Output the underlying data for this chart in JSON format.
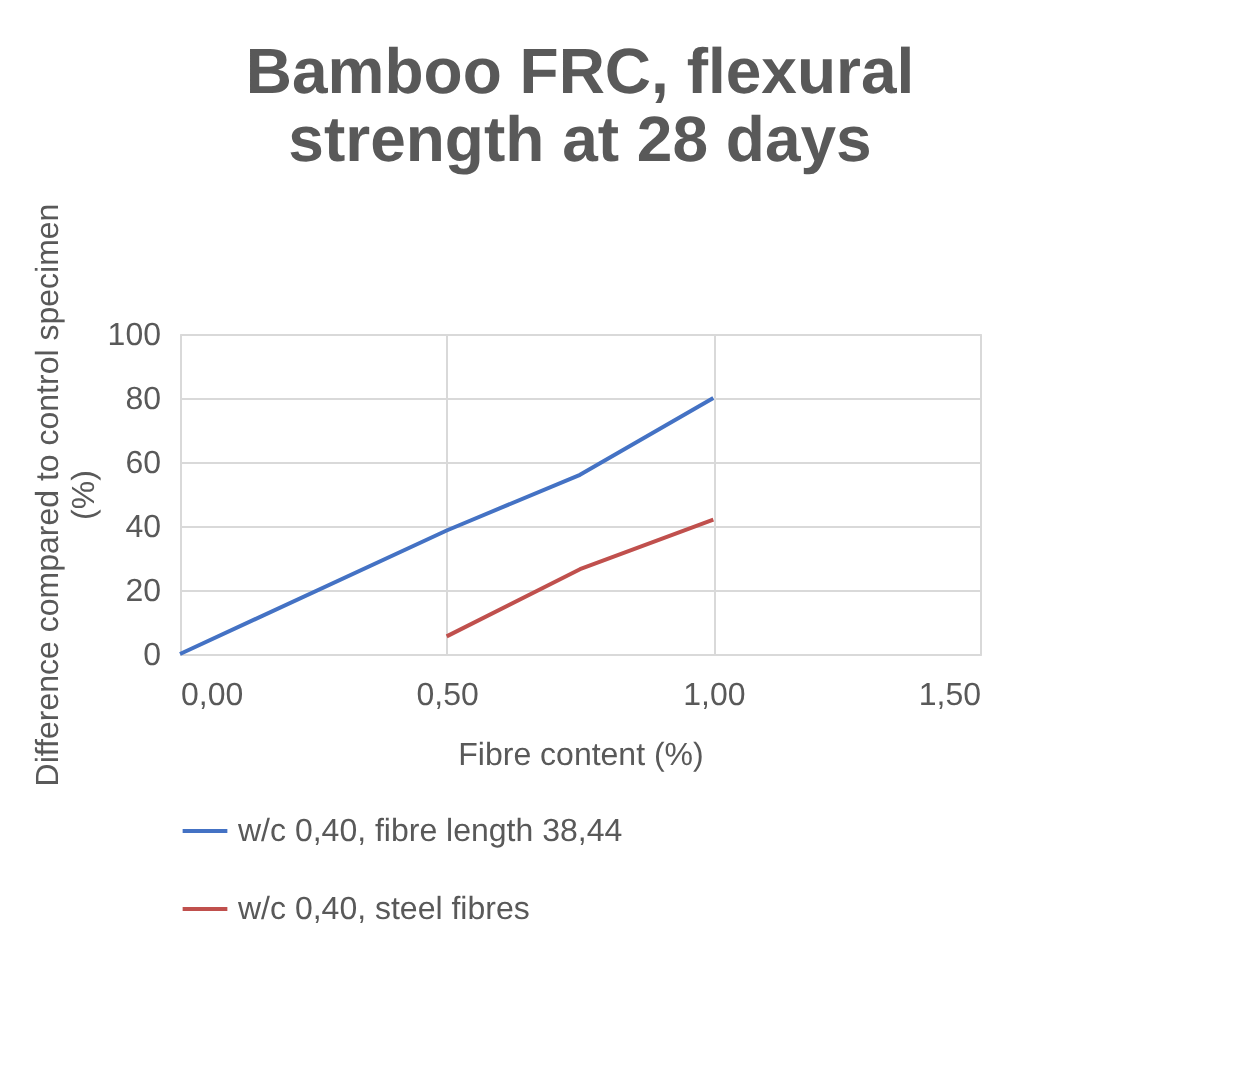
{
  "chart_data": {
    "type": "line",
    "title": "Bamboo FRC, flexural strength at 28 days",
    "xlabel": "Fibre content (%)",
    "ylabel": "Difference compared to control specimen (%)",
    "series": [
      {
        "name": "w/c 0,40, fibre length 38,44",
        "color": "#4472c4",
        "x": [
          0,
          0.5,
          0.75,
          1.0
        ],
        "values": [
          0,
          38.6,
          56,
          80
        ]
      },
      {
        "name": "w/c 0,40, steel fibres",
        "color": "#c0504d",
        "x": [
          0.5,
          0.75,
          1.0
        ],
        "values": [
          5.5,
          26.5,
          42
        ]
      }
    ],
    "xlim": [
      0,
      1.5
    ],
    "xticks": [
      {
        "value": 0,
        "label": "0,00"
      },
      {
        "value": 0.5,
        "label": "0,50"
      },
      {
        "value": 1.0,
        "label": "1,00"
      },
      {
        "value": 1.5,
        "label": "1,50"
      }
    ],
    "ylim": [
      0,
      100
    ],
    "yticks": [
      0,
      20,
      40,
      60,
      80,
      100
    ],
    "grid": true,
    "legend": "bottom",
    "marker": "none",
    "line_style": "solid"
  }
}
